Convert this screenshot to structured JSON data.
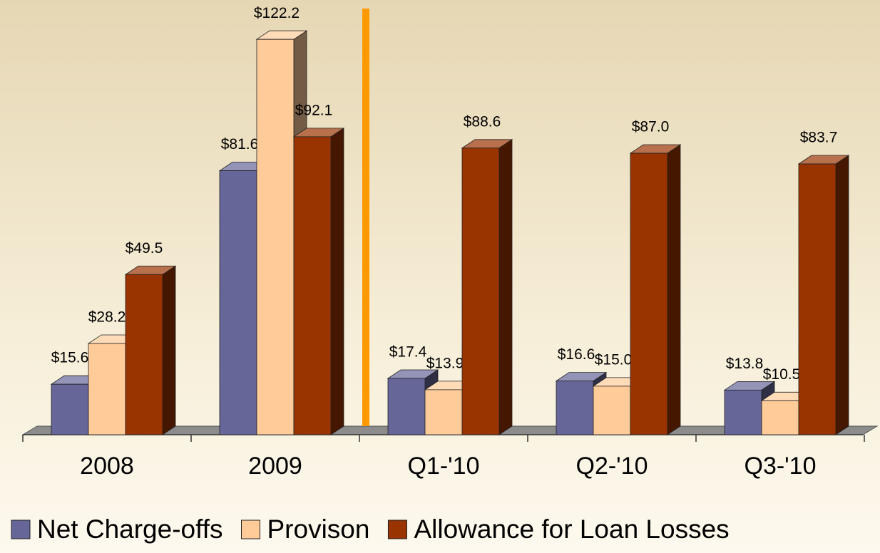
{
  "chart_data": {
    "type": "bar",
    "categories": [
      "2008",
      "2009",
      "Q1-'10",
      "Q2-'10",
      "Q3-'10"
    ],
    "series": [
      {
        "name": "Net Charge-offs",
        "color": "#666699",
        "values": [
          15.6,
          81.6,
          17.4,
          16.6,
          13.8
        ],
        "value_labels": [
          "$15.6",
          "$81.6",
          "$17.4",
          "$16.6",
          "$13.8"
        ]
      },
      {
        "name": "Provison",
        "color": "#ffcc99",
        "values": [
          28.2,
          122.2,
          13.9,
          15.0,
          10.5
        ],
        "value_labels": [
          "$28.2",
          "$122.2",
          "$13.9",
          "$15.0",
          "$10.5"
        ]
      },
      {
        "name": "Allowance for Loan Losses",
        "color": "#993300",
        "values": [
          49.5,
          92.1,
          88.6,
          87.0,
          83.7
        ],
        "value_labels": [
          "$49.5",
          "$92.1",
          "$88.6",
          "$87.0",
          "$83.7"
        ]
      }
    ]
  }
}
